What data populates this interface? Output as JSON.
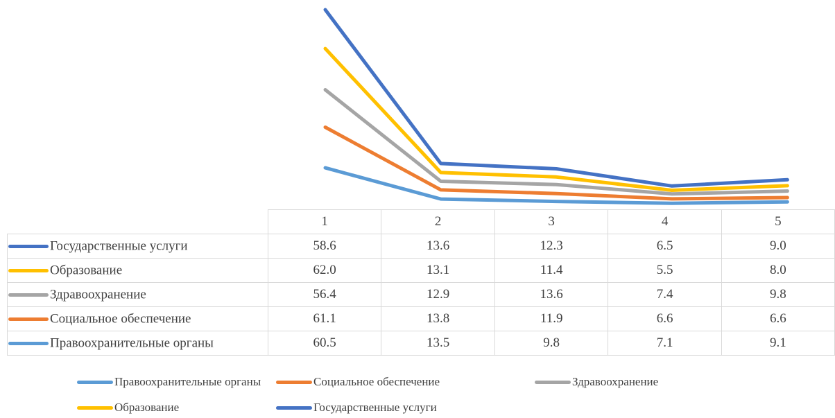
{
  "chart_data": {
    "type": "line",
    "categories": [
      "1",
      "2",
      "3",
      "4",
      "5"
    ],
    "stacked": true,
    "title": "",
    "xlabel": "",
    "ylabel": "",
    "grid": false,
    "legend_placement": "bottom",
    "data_table": true,
    "series": [
      {
        "name": "Государственные услуги",
        "color": "#4472c4",
        "values": [
          58.6,
          13.6,
          12.3,
          6.5,
          9.0
        ],
        "labels": [
          "58.6",
          "13.6",
          "12.3",
          "6.5",
          "9.0"
        ]
      },
      {
        "name": "Образование",
        "color": "#ffc000",
        "values": [
          62.0,
          13.1,
          11.4,
          5.5,
          8.0
        ],
        "labels": [
          "62.0",
          "13.1",
          "11.4",
          "5.5",
          "8.0"
        ]
      },
      {
        "name": "Здравоохранение",
        "color": "#a5a5a5",
        "values": [
          56.4,
          12.9,
          13.6,
          7.4,
          9.8
        ],
        "labels": [
          "56.4",
          "12.9",
          "13.6",
          "7.4",
          "9.8"
        ]
      },
      {
        "name": "Социальное обеспечение",
        "color": "#ed7d31",
        "values": [
          61.1,
          13.8,
          11.9,
          6.6,
          6.6
        ],
        "labels": [
          "61.1",
          "13.8",
          "11.9",
          "6.6",
          "6.6"
        ]
      },
      {
        "name": "Правоохранительные органы",
        "color": "#5b9bd5",
        "values": [
          60.5,
          13.5,
          9.8,
          7.1,
          9.1
        ],
        "labels": [
          "60.5",
          "13.5",
          "9.8",
          "7.1",
          "9.1"
        ]
      }
    ],
    "legend_order": [
      "Правоохранительные органы",
      "Социальное обеспечение",
      "Здравоохранение",
      "Образование",
      "Государственные услуги"
    ]
  }
}
